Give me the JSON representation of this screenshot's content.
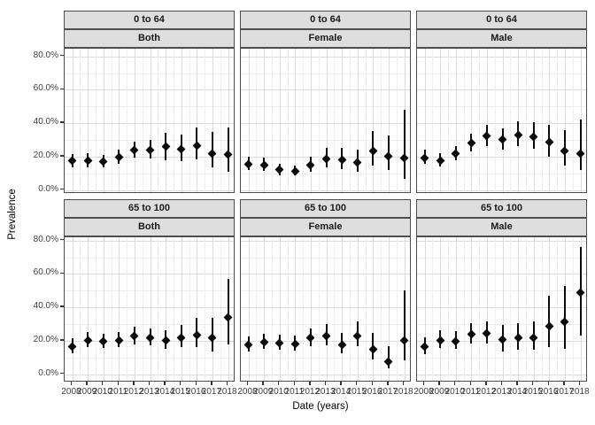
{
  "figure": {
    "background": "#ffffff",
    "strip_fill": "#dedede",
    "strip_border": "#4d4d4d",
    "panel_border": "#4d4d4d",
    "gridline_major": "#dcdcdc",
    "gridline_minor": "#eeeeee",
    "point_color": "#0a0a0a",
    "axis_text_color": "#404040"
  },
  "chart_data": {
    "type": "scatter",
    "subtype": "pointrange-faceted",
    "title": "",
    "xlabel": "Date (years)",
    "ylabel": "Prevalence",
    "x": [
      2008,
      2009,
      2010,
      2011,
      2012,
      2013,
      2014,
      2015,
      2016,
      2017,
      2018
    ],
    "ylim": [
      0,
      80
    ],
    "y_ticks": [
      0,
      20,
      40,
      60,
      80
    ],
    "y_tick_labels": [
      "0.0%",
      "20.0%",
      "40.0%",
      "60.0%",
      "80.0%"
    ],
    "grid": true,
    "legend": "none",
    "facet_rows": [
      "0 to 64",
      "65 to 100"
    ],
    "facet_cols": [
      "Both",
      "Female",
      "Male"
    ],
    "series": [
      {
        "facet_row": "0 to 64",
        "facet_col": "Both",
        "values": [
          17.5,
          17.5,
          17.0,
          19.5,
          24.0,
          24.0,
          26.0,
          24.5,
          26.5,
          22.0,
          21.0
        ],
        "ci_low": [
          13.5,
          13.5,
          13.5,
          15.5,
          19.5,
          19.0,
          18.0,
          17.0,
          18.5,
          13.5,
          11.0
        ],
        "ci_high": [
          21.5,
          22.0,
          21.0,
          24.0,
          29.0,
          30.0,
          34.0,
          33.0,
          37.5,
          34.5,
          37.5
        ]
      },
      {
        "facet_row": "0 to 64",
        "facet_col": "Female",
        "values": [
          15.5,
          15.0,
          12.0,
          11.0,
          15.0,
          18.5,
          18.0,
          16.5,
          23.5,
          20.0,
          19.0
        ],
        "ci_low": [
          12.0,
          11.5,
          9.0,
          8.5,
          11.0,
          13.5,
          12.5,
          11.0,
          14.5,
          12.0,
          6.5
        ],
        "ci_high": [
          20.0,
          19.5,
          15.5,
          14.5,
          20.0,
          25.0,
          25.0,
          24.0,
          35.5,
          32.5,
          48.0
        ]
      },
      {
        "facet_row": "0 to 64",
        "facet_col": "Male",
        "values": [
          19.0,
          17.5,
          22.0,
          28.0,
          32.5,
          30.0,
          33.0,
          32.0,
          28.5,
          23.5,
          22.0
        ],
        "ci_low": [
          15.5,
          14.0,
          18.0,
          23.0,
          26.5,
          24.0,
          26.0,
          24.5,
          20.0,
          14.5,
          12.0
        ],
        "ci_high": [
          24.0,
          22.0,
          26.5,
          33.5,
          39.0,
          37.0,
          41.0,
          40.5,
          39.0,
          36.0,
          42.0
        ]
      },
      {
        "facet_row": "65 to 100",
        "facet_col": "Both",
        "values": [
          16.5,
          20.0,
          19.5,
          20.0,
          23.0,
          21.5,
          20.0,
          22.0,
          23.5,
          21.5,
          34.0
        ],
        "ci_low": [
          12.5,
          16.0,
          15.5,
          16.0,
          18.0,
          17.0,
          15.0,
          16.0,
          16.0,
          13.5,
          18.0
        ],
        "ci_high": [
          21.5,
          25.0,
          24.0,
          25.0,
          28.5,
          27.5,
          26.5,
          29.5,
          33.5,
          33.5,
          57.0
        ]
      },
      {
        "facet_row": "65 to 100",
        "facet_col": "Female",
        "values": [
          17.5,
          19.0,
          18.5,
          18.0,
          21.5,
          23.0,
          17.5,
          23.0,
          15.0,
          7.5,
          20.0
        ],
        "ci_low": [
          13.5,
          15.0,
          14.5,
          14.0,
          16.5,
          17.5,
          12.5,
          16.5,
          9.0,
          3.5,
          8.0
        ],
        "ci_high": [
          22.5,
          24.0,
          23.5,
          23.0,
          27.5,
          30.0,
          24.5,
          31.5,
          24.5,
          16.5,
          50.0
        ]
      },
      {
        "facet_row": "65 to 100",
        "facet_col": "Male",
        "values": [
          16.5,
          20.0,
          19.5,
          24.0,
          24.5,
          20.5,
          21.5,
          22.0,
          28.5,
          31.5,
          49.0
        ],
        "ci_low": [
          12.0,
          15.5,
          15.0,
          18.5,
          18.5,
          13.5,
          14.5,
          14.5,
          16.0,
          15.0,
          23.0
        ],
        "ci_high": [
          22.0,
          26.0,
          25.5,
          30.5,
          31.5,
          29.5,
          30.5,
          31.5,
          47.0,
          53.0,
          76.0
        ]
      }
    ]
  }
}
